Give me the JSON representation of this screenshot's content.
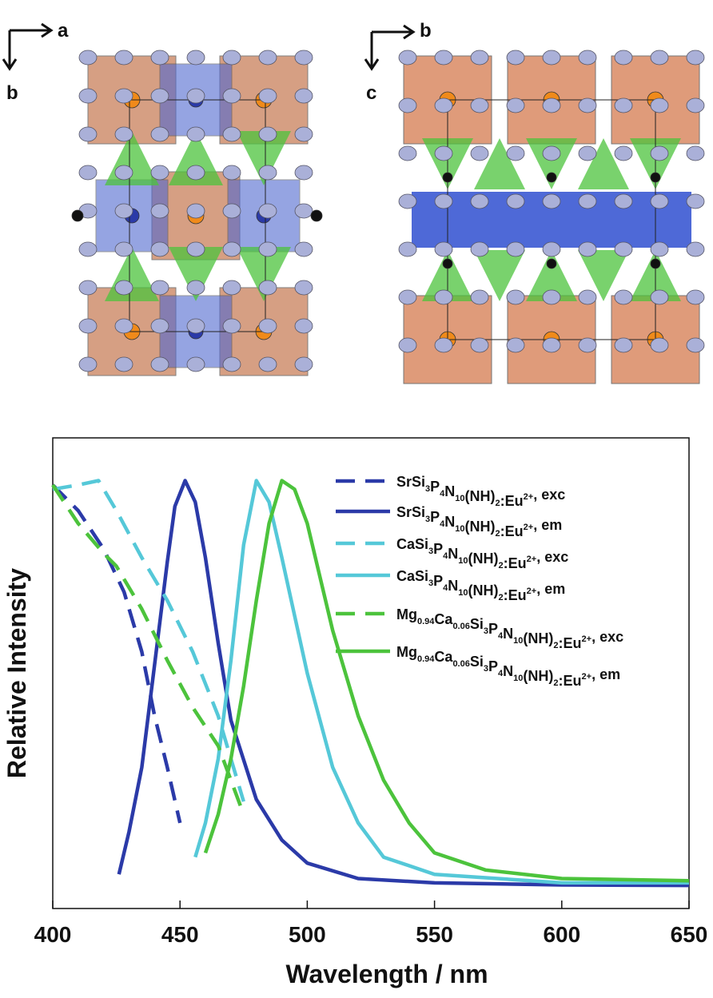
{
  "structures": [
    {
      "axes": [
        "a",
        "b"
      ]
    },
    {
      "axes": [
        "b",
        "c"
      ]
    }
  ],
  "chart_data": {
    "type": "line",
    "xlabel": "Wavelength / nm",
    "ylabel": "Relative Intensity",
    "xlim": [
      400,
      650
    ],
    "xticks": [
      400,
      450,
      500,
      550,
      600,
      650
    ],
    "ylim": [
      0,
      1.1
    ],
    "series": [
      {
        "name": "SrSi3P4N10(NH)2:Eu2+, exc",
        "color": "#2b3aa8",
        "dashed": true,
        "x": [
          400,
          410,
          420,
          428,
          435,
          440,
          445,
          450
        ],
        "values": [
          0.99,
          0.93,
          0.84,
          0.74,
          0.6,
          0.45,
          0.33,
          0.2
        ]
      },
      {
        "name": "SrSi3P4N10(NH)2:Eu2+, em",
        "color": "#2b3aa8",
        "dashed": false,
        "x": [
          426,
          430,
          435,
          440,
          445,
          448,
          452,
          456,
          460,
          465,
          470,
          480,
          490,
          500,
          520,
          550,
          600,
          650
        ],
        "values": [
          0.08,
          0.18,
          0.33,
          0.57,
          0.81,
          0.94,
          1.0,
          0.95,
          0.82,
          0.62,
          0.44,
          0.255,
          0.16,
          0.106,
          0.07,
          0.06,
          0.055,
          0.054
        ]
      },
      {
        "name": "CaSi3P4N10(NH)2:Eu2+, exc",
        "color": "#55c8d8",
        "dashed": true,
        "x": [
          400,
          410,
          418,
          425,
          435,
          445,
          455,
          465,
          470,
          475
        ],
        "values": [
          0.98,
          0.99,
          1.0,
          0.93,
          0.82,
          0.72,
          0.6,
          0.45,
          0.35,
          0.25
        ]
      },
      {
        "name": "CaSi3P4N10(NH)2:Eu2+, em",
        "color": "#55c8d8",
        "dashed": false,
        "x": [
          456,
          460,
          465,
          470,
          475,
          480,
          485,
          490,
          500,
          510,
          520,
          530,
          550,
          600,
          650
        ],
        "values": [
          0.12,
          0.2,
          0.35,
          0.58,
          0.85,
          1.0,
          0.95,
          0.82,
          0.55,
          0.33,
          0.2,
          0.12,
          0.08,
          0.06,
          0.06
        ]
      },
      {
        "name": "Mg0.94Ca0.06Si3P4N10(NH)2:Eu2+, exc",
        "color": "#4cc33c",
        "dashed": true,
        "x": [
          400,
          410,
          420,
          425,
          435,
          445,
          455,
          465,
          470,
          475
        ],
        "values": [
          0.99,
          0.9,
          0.83,
          0.8,
          0.7,
          0.58,
          0.47,
          0.38,
          0.3,
          0.22
        ]
      },
      {
        "name": "Mg0.94Ca0.06Si3P4N10(NH)2:Eu2+, em",
        "color": "#4cc33c",
        "dashed": false,
        "x": [
          460,
          465,
          470,
          475,
          480,
          485,
          490,
          495,
          500,
          510,
          520,
          530,
          540,
          550,
          570,
          600,
          650
        ],
        "values": [
          0.13,
          0.22,
          0.35,
          0.52,
          0.72,
          0.9,
          1.0,
          0.98,
          0.9,
          0.65,
          0.45,
          0.3,
          0.2,
          0.13,
          0.09,
          0.07,
          0.065
        ]
      }
    ]
  }
}
